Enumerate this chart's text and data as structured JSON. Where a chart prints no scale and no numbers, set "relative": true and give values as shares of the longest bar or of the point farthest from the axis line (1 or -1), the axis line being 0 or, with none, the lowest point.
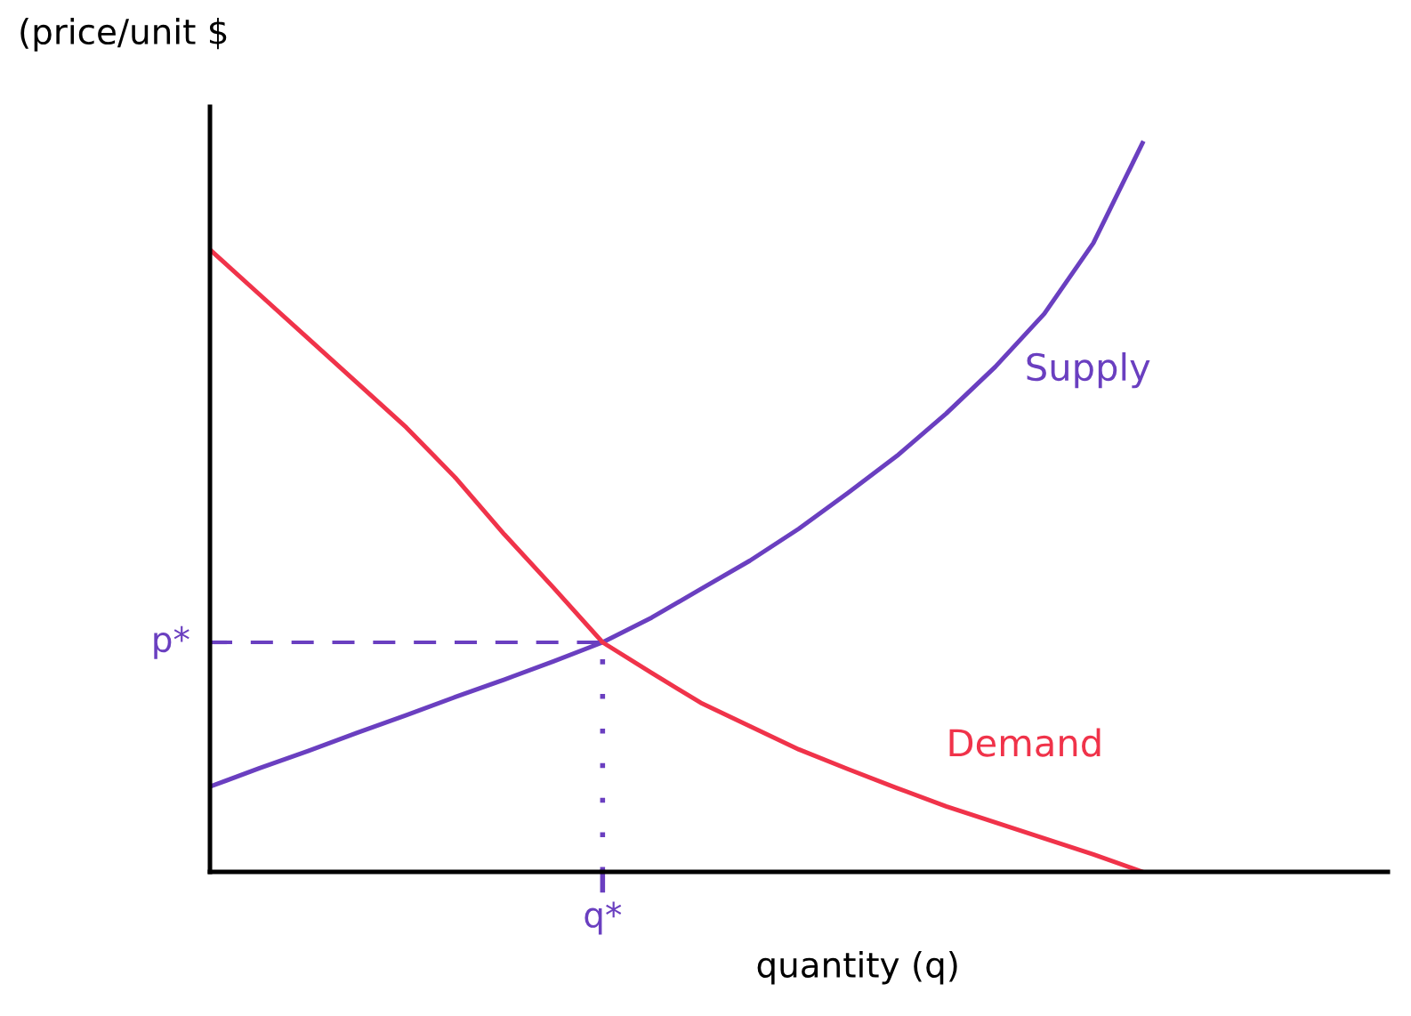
{
  "chart_data": {
    "type": "line",
    "relative": true,
    "xlabel": "quantity (q)",
    "ylabel": "(price/unit $",
    "categories": [
      null,
      null,
      null,
      null,
      null,
      null,
      null,
      null,
      null,
      null,
      null,
      null,
      null,
      null,
      null,
      null,
      null,
      null,
      null,
      null
    ],
    "annotations": [
      "q*"
    ],
    "series": [
      {
        "name": "Supply",
        "color": "#6a3fc0",
        "values": [
          0.117,
          0.142,
          0.166,
          0.191,
          0.215,
          0.24,
          0.264,
          0.289,
          0.315,
          0.349,
          0.388,
          0.427,
          0.471,
          0.52,
          0.571,
          0.629,
          0.693,
          0.766,
          0.863,
          1.0
        ]
      },
      {
        "name": "Demand",
        "color": "#f0334a",
        "values": [
          0.854,
          0.793,
          0.732,
          0.671,
          0.61,
          0.541,
          0.463,
          0.39,
          0.315,
          0.273,
          0.232,
          0.2,
          0.168,
          0.141,
          0.115,
          0.09,
          0.068,
          0.046,
          0.024,
          0.0
        ]
      }
    ],
    "ref_lines": [
      {
        "axis": "y",
        "value": 0.315,
        "label": "p*",
        "color": "#6a3fc0",
        "line_style": "dashed"
      }
    ],
    "legend": false
  }
}
